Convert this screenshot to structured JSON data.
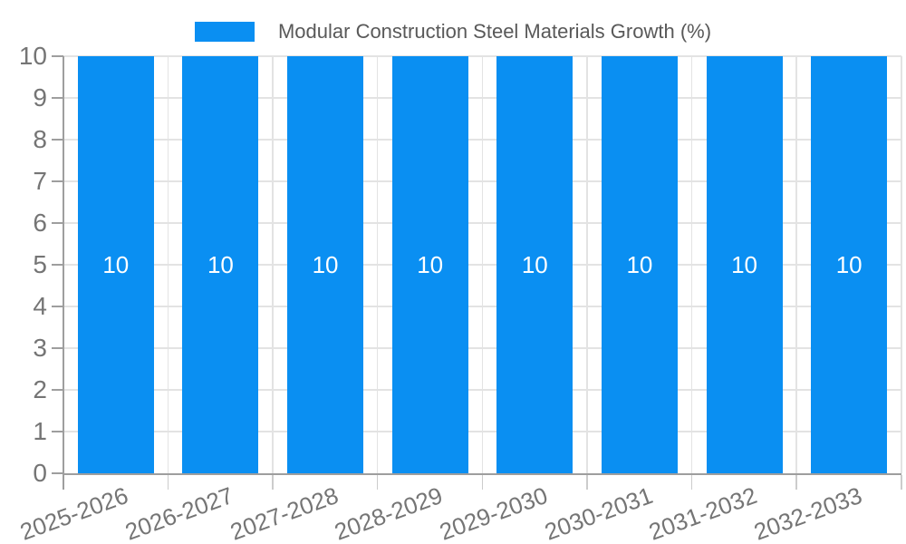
{
  "chart_data": {
    "type": "bar",
    "title": "Modular Construction Steel Materials Growth (%)",
    "legend": [
      "Modular Construction Steel Materials Growth (%)"
    ],
    "legend_position": "top-center",
    "categories": [
      "2025-2026",
      "2026-2027",
      "2027-2028",
      "2028-2029",
      "2029-2030",
      "2030-2031",
      "2031-2032",
      "2032-2033"
    ],
    "series": [
      {
        "name": "Modular Construction Steel Materials Growth (%)",
        "values": [
          10,
          10,
          10,
          10,
          10,
          10,
          10,
          10
        ]
      }
    ],
    "value_labels": [
      "10",
      "10",
      "10",
      "10",
      "10",
      "10",
      "10",
      "10"
    ],
    "xlabel": "",
    "ylabel": "",
    "ylim": [
      0,
      10
    ],
    "y_ticks": [
      0,
      1,
      2,
      3,
      4,
      5,
      6,
      7,
      8,
      9,
      10
    ],
    "x_label_rotation_deg": -20,
    "grid": true,
    "colors": {
      "bar": "#0a8ff2",
      "value_label": "#ffffff",
      "axis_label": "#757575",
      "legend_text": "#595959",
      "grid_line": "#e3e3e3",
      "axis_line": "#9e9e9e",
      "category_tick": "#cccccc",
      "background": "#ffffff"
    }
  }
}
